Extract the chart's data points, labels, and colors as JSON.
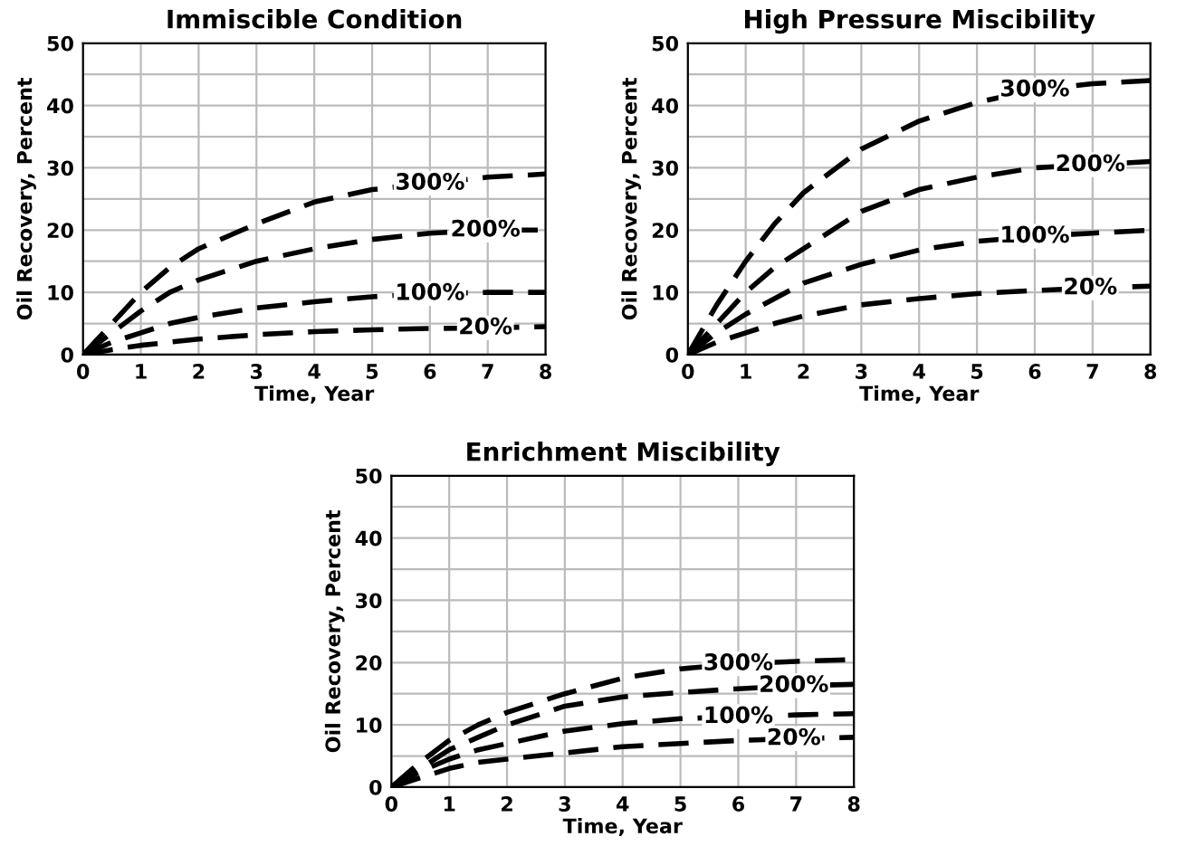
{
  "chart_data": [
    {
      "type": "line",
      "title": "Immiscible Condition",
      "xlabel": "Time, Year",
      "ylabel": "Oil Recovery, Percent",
      "x": [
        0,
        0.5,
        1,
        1.5,
        2,
        3,
        4,
        5,
        6,
        7,
        8
      ],
      "series": [
        {
          "name": "300%",
          "color": "#000000",
          "values": [
            0,
            5,
            10,
            14,
            17,
            21,
            24.5,
            26.5,
            27.5,
            28.5,
            29
          ]
        },
        {
          "name": "200%",
          "color": "#000000",
          "values": [
            0,
            3.5,
            7,
            10,
            12,
            15,
            17,
            18.5,
            19.5,
            20,
            20
          ]
        },
        {
          "name": "100%",
          "color": "#000000",
          "values": [
            0,
            2,
            3.5,
            5,
            6,
            7.5,
            8.5,
            9.3,
            9.8,
            10,
            10
          ]
        },
        {
          "name": "20%",
          "color": "#000000",
          "values": [
            0,
            0.8,
            1.5,
            2,
            2.5,
            3.2,
            3.7,
            4,
            4.2,
            4.3,
            4.5
          ]
        }
      ],
      "xlim": [
        0,
        8
      ],
      "xticks": [
        0,
        1,
        2,
        3,
        4,
        5,
        6,
        7,
        8
      ],
      "ylim": [
        0,
        50
      ],
      "yticks": [
        0,
        {
          "value": 5,
          "label": null
        },
        10,
        {
          "value": 15,
          "label": null
        },
        20,
        {
          "value": 25,
          "label": null
        },
        30,
        {
          "value": 35,
          "label": null
        },
        40,
        {
          "value": 45,
          "label": null
        },
        50
      ],
      "grid": true,
      "legend": false,
      "line_style": "dashed",
      "marker": "none"
    },
    {
      "type": "line",
      "title": "High Pressure Miscibility",
      "xlabel": "Time, Year",
      "ylabel": "Oil Recovery, Percent",
      "x": [
        0,
        0.5,
        1,
        1.5,
        2,
        3,
        4,
        5,
        6,
        7,
        8
      ],
      "series": [
        {
          "name": "300%",
          "color": "#000000",
          "values": [
            0,
            8,
            15,
            21,
            26,
            33,
            37.5,
            40.5,
            42.5,
            43.5,
            44
          ]
        },
        {
          "name": "200%",
          "color": "#000000",
          "values": [
            0,
            5,
            10,
            14,
            17,
            23,
            26.5,
            28.5,
            30,
            30.5,
            31
          ]
        },
        {
          "name": "100%",
          "color": "#000000",
          "values": [
            0,
            3.5,
            6.5,
            9,
            11.5,
            14.5,
            16.8,
            18.2,
            19,
            19.5,
            20
          ]
        },
        {
          "name": "20%",
          "color": "#000000",
          "values": [
            0,
            2,
            3.5,
            5,
            6.2,
            8,
            9,
            9.8,
            10.3,
            10.7,
            11
          ]
        }
      ],
      "xlim": [
        0,
        8
      ],
      "xticks": [
        0,
        1,
        2,
        3,
        4,
        5,
        6,
        7,
        8
      ],
      "ylim": [
        0,
        50
      ],
      "yticks": [
        0,
        {
          "value": 5,
          "label": null
        },
        10,
        {
          "value": 15,
          "label": null
        },
        20,
        {
          "value": 25,
          "label": null
        },
        30,
        {
          "value": 35,
          "label": null
        },
        40,
        {
          "value": 45,
          "label": null
        },
        50
      ],
      "grid": true,
      "legend": false,
      "line_style": "dashed",
      "marker": "none"
    },
    {
      "type": "line",
      "title": "Enrichment Miscibility",
      "xlabel": "Time, Year",
      "ylabel": "Oil Recovery, Percent",
      "x": [
        0,
        0.5,
        1,
        1.5,
        2,
        3,
        4,
        5,
        6,
        7,
        8
      ],
      "series": [
        {
          "name": "300%",
          "color": "#000000",
          "values": [
            0,
            4,
            7.5,
            10,
            12,
            15,
            17.5,
            19,
            19.8,
            20.2,
            20.5
          ]
        },
        {
          "name": "200%",
          "color": "#000000",
          "values": [
            0,
            3,
            6,
            8,
            10,
            13,
            14.5,
            15.2,
            15.8,
            16.3,
            16.5
          ]
        },
        {
          "name": "100%",
          "color": "#000000",
          "values": [
            0,
            2.5,
            4.5,
            6,
            7,
            9,
            10.2,
            11,
            11.3,
            11.6,
            11.8
          ]
        },
        {
          "name": "20%",
          "color": "#000000",
          "values": [
            0,
            1.5,
            3,
            4,
            4.5,
            5.5,
            6.5,
            7,
            7.5,
            7.8,
            8
          ]
        }
      ],
      "xlim": [
        0,
        8
      ],
      "xticks": [
        0,
        1,
        2,
        3,
        4,
        5,
        6,
        7,
        8
      ],
      "ylim": [
        0,
        50
      ],
      "yticks": [
        0,
        {
          "value": 5,
          "label": null
        },
        10,
        {
          "value": 15,
          "label": null
        },
        20,
        {
          "value": 25,
          "label": null
        },
        30,
        {
          "value": 35,
          "label": null
        },
        40,
        {
          "value": 45,
          "label": null
        },
        50
      ],
      "grid": true,
      "legend": false,
      "line_style": "dashed",
      "marker": "none"
    }
  ]
}
